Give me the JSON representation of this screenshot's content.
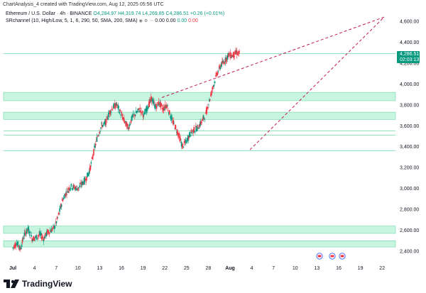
{
  "header": {
    "title": "ChartAnalysis_4 created with TradingView.com, Aug 12, 2025 05:56 UTC"
  },
  "legend_main": {
    "symbol": "Ethereum / U.S. Dollar · 4h · BINANCE",
    "open": "O4,284.97",
    "high": "H4,319.74",
    "low": "L4,269.85",
    "close": "C4,286.51",
    "change": "+0.26 (+0.01%)"
  },
  "legend_indicator": {
    "name": "SRchannel (10, High/Low, 5, 1, 6, 290, 50, SMA, 200, SMA)",
    "val1": "0.00",
    "val2": "0.00",
    "val3": "0.00",
    "val4": "0.00"
  },
  "price_badge": {
    "price": "4,286.51",
    "countdown": "02:03:13"
  },
  "colors": {
    "up": "#089981",
    "down": "#f23645",
    "zone": "#c8f5df",
    "zone_border": "#6fd8a6",
    "trendline": "#c2185b"
  },
  "chart_data": {
    "type": "candlestick",
    "ylim": [
      2300,
      4700
    ],
    "y_ticks": [
      "4,600.00",
      "4,400.00",
      "4,200.00",
      "4,000.00",
      "3,800.00",
      "3,600.00",
      "3,400.00",
      "3,200.00",
      "3,000.00",
      "2,800.00",
      "2,600.00",
      "2,400.00"
    ],
    "x_ticks": [
      "Jul",
      "4",
      "7",
      "10",
      "13",
      "16",
      "19",
      "22",
      "25",
      "28",
      "Aug",
      "4",
      "7",
      "10",
      "13",
      "16",
      "19",
      "22"
    ],
    "support_resistance_zones": [
      {
        "low": 3840,
        "high": 3920
      },
      {
        "low": 3660,
        "high": 3730
      },
      {
        "low": 2570,
        "high": 2640
      },
      {
        "low": 2440,
        "high": 2500
      }
    ],
    "horizontal_lines": [
      4290,
      3510,
      3360,
      3550
    ],
    "trendlines": [
      {
        "from": [
          "Jul 21",
          3870
        ],
        "to": [
          "Aug 13",
          4640
        ]
      },
      {
        "from": [
          "Aug 3",
          3370
        ],
        "to": [
          "Aug 13",
          4640
        ]
      }
    ],
    "path_points": [
      [
        0,
        2430
      ],
      [
        2,
        2480
      ],
      [
        4,
        2420
      ],
      [
        6,
        2560
      ],
      [
        8,
        2610
      ],
      [
        10,
        2520
      ],
      [
        12,
        2530
      ],
      [
        14,
        2560
      ],
      [
        16,
        2520
      ],
      [
        18,
        2580
      ],
      [
        20,
        2600
      ],
      [
        22,
        2640
      ],
      [
        24,
        2760
      ],
      [
        26,
        2900
      ],
      [
        28,
        2970
      ],
      [
        30,
        3020
      ],
      [
        32,
        3010
      ],
      [
        34,
        3000
      ],
      [
        36,
        3050
      ],
      [
        38,
        3090
      ],
      [
        40,
        3180
      ],
      [
        42,
        3350
      ],
      [
        44,
        3500
      ],
      [
        46,
        3600
      ],
      [
        48,
        3620
      ],
      [
        50,
        3720
      ],
      [
        52,
        3780
      ],
      [
        54,
        3800
      ],
      [
        56,
        3720
      ],
      [
        58,
        3640
      ],
      [
        60,
        3580
      ],
      [
        62,
        3680
      ],
      [
        64,
        3720
      ],
      [
        66,
        3760
      ],
      [
        68,
        3700
      ],
      [
        70,
        3780
      ],
      [
        72,
        3860
      ],
      [
        74,
        3780
      ],
      [
        76,
        3820
      ],
      [
        78,
        3760
      ],
      [
        80,
        3800
      ],
      [
        82,
        3680
      ],
      [
        84,
        3600
      ],
      [
        86,
        3520
      ],
      [
        88,
        3400
      ],
      [
        90,
        3450
      ],
      [
        92,
        3520
      ],
      [
        94,
        3560
      ],
      [
        96,
        3580
      ],
      [
        98,
        3640
      ],
      [
        100,
        3700
      ],
      [
        102,
        3840
      ],
      [
        104,
        3980
      ],
      [
        106,
        4100
      ],
      [
        108,
        4180
      ],
      [
        110,
        4220
      ],
      [
        112,
        4280
      ],
      [
        114,
        4270
      ],
      [
        116,
        4300
      ],
      [
        118,
        4286
      ]
    ]
  }
}
